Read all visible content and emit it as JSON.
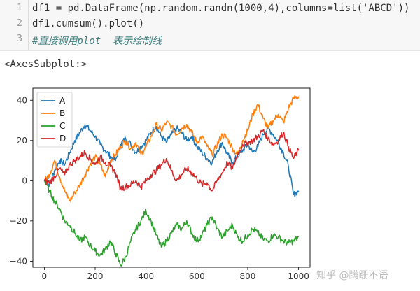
{
  "notebook": {
    "lines": [
      {
        "num": "1",
        "text": "df1 = pd.DataFrame(np.random.randn(1000,4),columns=list('ABCD'))"
      },
      {
        "num": "2",
        "text": "df1.cumsum().plot()"
      },
      {
        "num": "3",
        "text": "#直接调用plot  表示绘制线"
      }
    ],
    "output_repr": "<AxesSubplot:>"
  },
  "watermark": "知乎 @蹒跚不语",
  "colors": {
    "A": "#1f77b4",
    "B": "#ff7f0e",
    "C": "#2ca02c",
    "D": "#d62728"
  },
  "chart_data": {
    "type": "line",
    "title": "",
    "xlabel": "",
    "ylabel": "",
    "xlim": [
      -45,
      1045
    ],
    "ylim": [
      -43,
      46
    ],
    "xticks": [
      0,
      200,
      400,
      600,
      800,
      1000
    ],
    "yticks": [
      -40,
      -20,
      0,
      20,
      40
    ],
    "legend": "top-left",
    "grid": false,
    "series": [
      {
        "name": "A",
        "x": [
          0,
          20,
          40,
          60,
          80,
          100,
          120,
          140,
          160,
          180,
          200,
          220,
          240,
          260,
          280,
          300,
          320,
          340,
          360,
          380,
          400,
          420,
          440,
          460,
          480,
          500,
          520,
          540,
          560,
          580,
          600,
          620,
          640,
          660,
          680,
          700,
          720,
          740,
          760,
          780,
          800,
          820,
          840,
          860,
          880,
          900,
          920,
          940,
          960,
          980,
          1000
        ],
        "y": [
          0,
          -2,
          5,
          10,
          8,
          14,
          20,
          24,
          28,
          25,
          22,
          18,
          15,
          12,
          10,
          18,
          21,
          18,
          14,
          17,
          20,
          24,
          27,
          22,
          19,
          23,
          26,
          24,
          20,
          22,
          17,
          14,
          11,
          9,
          15,
          19,
          13,
          9,
          12,
          15,
          18,
          14,
          17,
          23,
          26,
          23,
          19,
          14,
          7,
          -7,
          -5
        ]
      },
      {
        "name": "B",
        "x": [
          0,
          20,
          40,
          60,
          80,
          100,
          120,
          140,
          160,
          180,
          200,
          220,
          240,
          260,
          280,
          300,
          320,
          340,
          360,
          380,
          400,
          420,
          440,
          460,
          480,
          500,
          520,
          540,
          560,
          580,
          600,
          620,
          640,
          660,
          680,
          700,
          720,
          740,
          760,
          780,
          800,
          820,
          840,
          860,
          880,
          900,
          920,
          940,
          960,
          980,
          1000
        ],
        "y": [
          0,
          3,
          10,
          2,
          -5,
          -10,
          -6,
          -2,
          3,
          8,
          12,
          8,
          2,
          10,
          13,
          17,
          20,
          16,
          19,
          13,
          17,
          22,
          28,
          25,
          29,
          27,
          23,
          26,
          28,
          24,
          19,
          22,
          17,
          13,
          18,
          23,
          21,
          16,
          13,
          20,
          25,
          33,
          38,
          31,
          26,
          30,
          33,
          29,
          36,
          41,
          42
        ]
      },
      {
        "name": "C",
        "x": [
          0,
          20,
          40,
          60,
          80,
          100,
          120,
          140,
          160,
          180,
          200,
          220,
          240,
          260,
          280,
          300,
          320,
          340,
          360,
          380,
          400,
          420,
          440,
          460,
          480,
          500,
          520,
          540,
          560,
          580,
          600,
          620,
          640,
          660,
          680,
          700,
          720,
          740,
          760,
          780,
          800,
          820,
          840,
          860,
          880,
          900,
          920,
          940,
          960,
          980,
          1000
        ],
        "y": [
          0,
          -5,
          -10,
          -14,
          -20,
          -22,
          -26,
          -30,
          -28,
          -32,
          -35,
          -37,
          -34,
          -30,
          -36,
          -42,
          -38,
          -30,
          -24,
          -20,
          -15,
          -20,
          -27,
          -33,
          -30,
          -26,
          -22,
          -24,
          -20,
          -26,
          -30,
          -27,
          -22,
          -18,
          -24,
          -28,
          -25,
          -22,
          -28,
          -30,
          -27,
          -24,
          -26,
          -29,
          -30,
          -27,
          -28,
          -30,
          -31,
          -30,
          -28
        ]
      },
      {
        "name": "D",
        "x": [
          0,
          20,
          40,
          60,
          80,
          100,
          120,
          140,
          160,
          180,
          200,
          220,
          240,
          260,
          280,
          300,
          320,
          340,
          360,
          380,
          400,
          420,
          440,
          460,
          480,
          500,
          520,
          540,
          560,
          580,
          600,
          620,
          640,
          660,
          680,
          700,
          720,
          740,
          760,
          780,
          800,
          820,
          840,
          860,
          880,
          900,
          920,
          940,
          960,
          980,
          1000
        ],
        "y": [
          0,
          -1,
          2,
          6,
          3,
          8,
          10,
          12,
          14,
          11,
          8,
          12,
          9,
          7,
          4,
          -4,
          -3,
          -2,
          0,
          -3,
          0,
          3,
          5,
          8,
          11,
          5,
          0,
          3,
          6,
          4,
          1,
          -2,
          -1,
          -5,
          0,
          4,
          9,
          6,
          13,
          18,
          19,
          20,
          22,
          25,
          21,
          18,
          20,
          24,
          17,
          11,
          15
        ]
      }
    ]
  }
}
